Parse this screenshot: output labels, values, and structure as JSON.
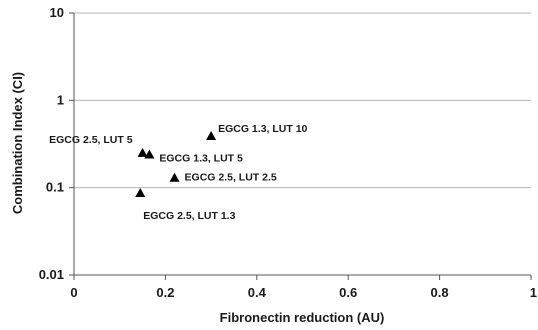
{
  "chart_data": {
    "type": "scatter",
    "title": "",
    "xlabel": "Fibronectin reduction (AU)",
    "ylabel": "Combination Index (CI)",
    "x_scale": "linear",
    "y_scale": "log",
    "xlim": [
      0,
      1
    ],
    "ylim": [
      0.01,
      10
    ],
    "x_ticks": [
      0,
      0.2,
      0.4,
      0.6,
      0.8,
      1
    ],
    "x_tick_labels": [
      "0",
      "0.2",
      "0.4",
      "0.6",
      "0.8",
      "1"
    ],
    "y_ticks": [
      0.01,
      0.1,
      1,
      10
    ],
    "y_tick_labels": [
      "0.01",
      "0.1",
      "1",
      "10"
    ],
    "grid": "horizontal",
    "legend": "none",
    "marker": "triangle",
    "marker_color": "#000000",
    "points": [
      {
        "x": 0.3,
        "y": 0.39,
        "label": "EGCG 1.3, LUT 10"
      },
      {
        "x": 0.15,
        "y": 0.25,
        "label": "EGCG 2.5, LUT 5"
      },
      {
        "x": 0.165,
        "y": 0.24,
        "label": "EGCG 1.3, LUT 5"
      },
      {
        "x": 0.22,
        "y": 0.13,
        "label": "EGCG 2.5, LUT 2.5"
      },
      {
        "x": 0.145,
        "y": 0.087,
        "label": "EGCG 2.5, LUT 1.3"
      }
    ]
  }
}
